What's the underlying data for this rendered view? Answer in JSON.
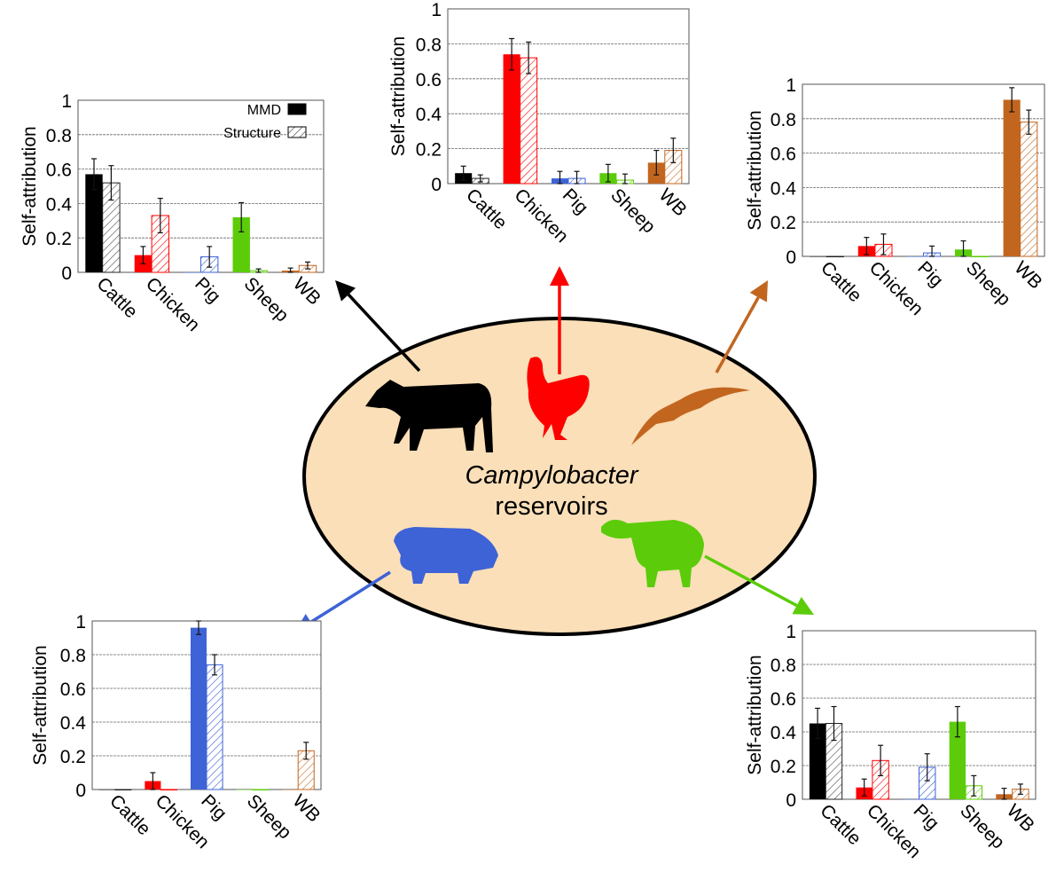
{
  "center_label": {
    "line1": "Campylobacter",
    "line2": "reservoirs"
  },
  "colors": {
    "Cattle": "#000000",
    "Chicken": "#ff0000",
    "Pig": "#3d63d6",
    "Sheep": "#5ccc0a",
    "WB": "#c2661f",
    "reservoir_fill": "#fadfb8"
  },
  "icons": [
    "cow-icon",
    "chicken-icon",
    "bird-icon",
    "pig-icon",
    "sheep-icon"
  ],
  "chart_data": [
    {
      "type": "bar",
      "reservoir": "Cattle",
      "ylabel": "Self-attribution",
      "ylim": [
        0,
        1
      ],
      "yticks": [
        "0",
        "0.2",
        "0.4",
        "0.6",
        "0.8",
        "1"
      ],
      "grid": true,
      "categories": [
        "Cattle",
        "Chicken",
        "Pig",
        "Sheep",
        "WB"
      ],
      "legend": {
        "placement": "top-right",
        "entries": [
          "MMD",
          "Structure"
        ]
      },
      "series": [
        {
          "name": "MMD",
          "values": [
            0.57,
            0.1,
            0,
            0.32,
            0.01
          ],
          "errors": [
            0.09,
            0.05,
            0,
            0.085,
            0.015
          ]
        },
        {
          "name": "Structure",
          "values": [
            0.52,
            0.33,
            0.09,
            0.01,
            0.04
          ],
          "errors": [
            0.1,
            0.1,
            0.06,
            0.01,
            0.02
          ]
        }
      ]
    },
    {
      "type": "bar",
      "reservoir": "Chicken",
      "ylabel": "Self-attribution",
      "ylim": [
        0,
        1
      ],
      "yticks": [
        "0",
        "0.2",
        "0.4",
        "0.6",
        "0.8",
        "1"
      ],
      "grid": true,
      "categories": [
        "Cattle",
        "Chicken",
        "Pig",
        "Sheep",
        "WB"
      ],
      "series": [
        {
          "name": "MMD",
          "values": [
            0.06,
            0.74,
            0.03,
            0.06,
            0.12
          ],
          "errors": [
            0.04,
            0.09,
            0.04,
            0.05,
            0.07
          ]
        },
        {
          "name": "Structure",
          "values": [
            0.03,
            0.72,
            0.03,
            0.02,
            0.19
          ],
          "errors": [
            0.02,
            0.09,
            0.04,
            0.035,
            0.07
          ]
        }
      ]
    },
    {
      "type": "bar",
      "reservoir": "WB",
      "ylabel": "Self-attribution",
      "ylim": [
        0,
        1
      ],
      "yticks": [
        "0",
        "0.2",
        "0.4",
        "0.6",
        "0.8",
        "1"
      ],
      "grid": true,
      "categories": [
        "Cattle",
        "Chicken",
        "Pig",
        "Sheep",
        "WB"
      ],
      "series": [
        {
          "name": "MMD",
          "values": [
            0,
            0.06,
            0,
            0.04,
            0.91
          ],
          "errors": [
            0,
            0.05,
            0,
            0.05,
            0.07
          ]
        },
        {
          "name": "Structure",
          "values": [
            0,
            0.07,
            0.02,
            0,
            0.78
          ],
          "errors": [
            0,
            0.06,
            0.04,
            0,
            0.07
          ]
        }
      ]
    },
    {
      "type": "bar",
      "reservoir": "Pig",
      "ylabel": "Self-attribution",
      "ylim": [
        0,
        1
      ],
      "yticks": [
        "0",
        "0.2",
        "0.4",
        "0.6",
        "0.8",
        "1"
      ],
      "grid": true,
      "categories": [
        "Cattle",
        "Chicken",
        "Pig",
        "Sheep",
        "WB"
      ],
      "series": [
        {
          "name": "MMD",
          "values": [
            0,
            0.05,
            0.96,
            0,
            0
          ],
          "errors": [
            0,
            0.05,
            0.04,
            0,
            0
          ]
        },
        {
          "name": "Structure",
          "values": [
            0,
            0,
            0.74,
            0,
            0.23
          ],
          "errors": [
            0,
            0,
            0.06,
            0,
            0.05
          ]
        }
      ]
    },
    {
      "type": "bar",
      "reservoir": "Sheep",
      "ylabel": "Self-attribution",
      "ylim": [
        0,
        1
      ],
      "yticks": [
        "0",
        "0.2",
        "0.4",
        "0.6",
        "0.8",
        "1"
      ],
      "grid": true,
      "categories": [
        "Cattle",
        "Chicken",
        "Pig",
        "Sheep",
        "WB"
      ],
      "series": [
        {
          "name": "MMD",
          "values": [
            0.45,
            0.07,
            0,
            0.46,
            0.03
          ],
          "errors": [
            0.09,
            0.05,
            0,
            0.09,
            0.035
          ]
        },
        {
          "name": "Structure",
          "values": [
            0.45,
            0.23,
            0.19,
            0.08,
            0.06
          ],
          "errors": [
            0.1,
            0.09,
            0.08,
            0.06,
            0.03
          ]
        }
      ]
    }
  ]
}
